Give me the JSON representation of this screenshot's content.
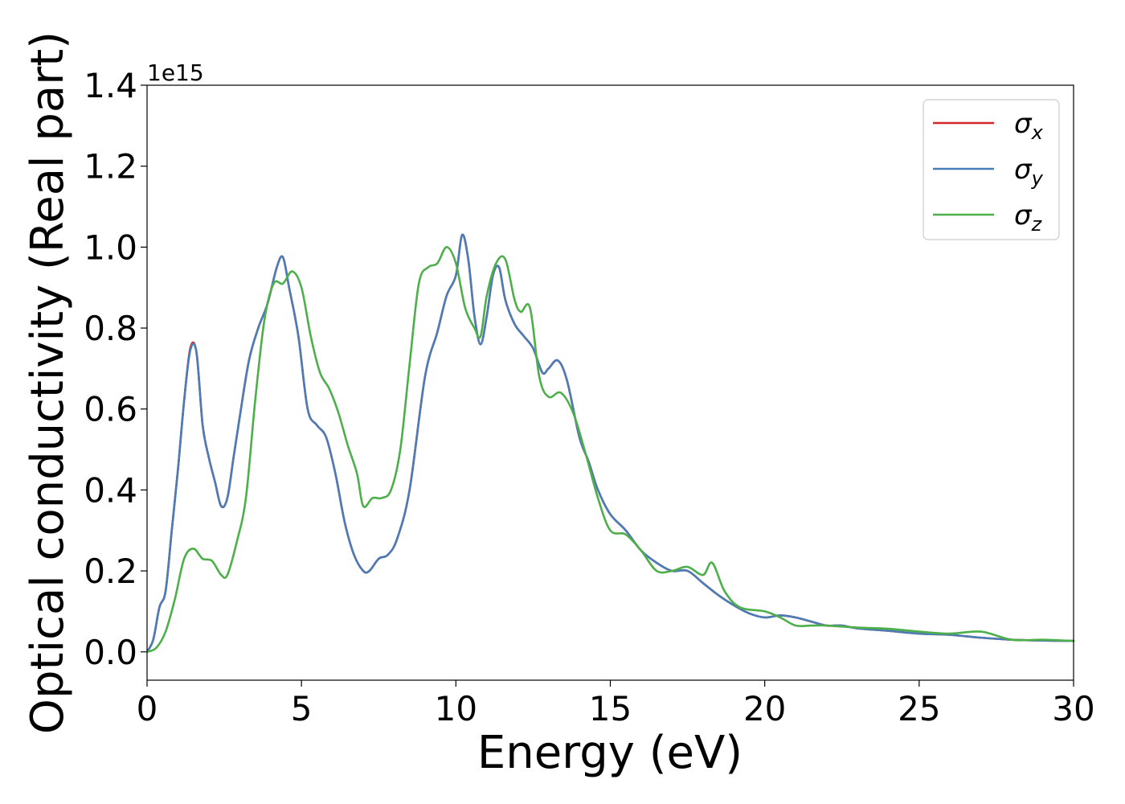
{
  "chart_data": {
    "type": "line",
    "xlabel": "Energy (eV)",
    "ylabel": "Optical conductivity (Real part)",
    "y_offset_text": "1e15",
    "xlim": [
      0,
      30
    ],
    "ylim": [
      -0.07,
      1.4
    ],
    "x_ticks": [
      0,
      5,
      10,
      15,
      20,
      25,
      30
    ],
    "x_tick_labels": [
      "0",
      "5",
      "10",
      "15",
      "20",
      "25",
      "30"
    ],
    "y_ticks": [
      0.0,
      0.2,
      0.4,
      0.6,
      0.8,
      1.0,
      1.2,
      1.4
    ],
    "y_tick_labels": [
      "0.0",
      "0.2",
      "0.4",
      "0.6",
      "0.8",
      "1.0",
      "1.2",
      "1.4"
    ],
    "grid": false,
    "legend": {
      "position": "top-right",
      "entries": [
        "σx",
        "σy",
        "σz"
      ]
    },
    "series": [
      {
        "name": "σx",
        "color": "#d62728",
        "x": [
          0,
          0.2,
          0.4,
          0.6,
          0.8,
          1.0,
          1.2,
          1.4,
          1.6,
          1.8,
          2.0,
          2.2,
          2.4,
          2.6,
          2.8,
          3.0,
          3.3,
          3.6,
          3.9,
          4.2,
          4.4,
          4.6,
          4.9,
          5.2,
          5.5,
          5.8,
          6.1,
          6.4,
          6.7,
          7.0,
          7.2,
          7.5,
          7.8,
          8.1,
          8.5,
          9.0,
          9.4,
          9.7,
          10.0,
          10.2,
          10.4,
          10.6,
          10.8,
          11.0,
          11.2,
          11.4,
          11.6,
          11.9,
          12.2,
          12.5,
          12.8,
          13.0,
          13.3,
          13.6,
          14.0,
          14.3,
          14.6,
          15.0,
          15.5,
          16.0,
          16.5,
          17.0,
          17.5,
          18.0,
          18.5,
          19.0,
          19.5,
          20.0,
          20.5,
          21.0,
          21.5,
          22.0,
          22.5,
          23.0,
          24.0,
          25.0,
          26.0,
          27.0,
          28.0,
          29.0,
          30.0
        ],
        "y": [
          0.0,
          0.03,
          0.11,
          0.15,
          0.3,
          0.45,
          0.62,
          0.75,
          0.74,
          0.56,
          0.48,
          0.42,
          0.36,
          0.38,
          0.48,
          0.58,
          0.72,
          0.8,
          0.86,
          0.95,
          0.975,
          0.9,
          0.78,
          0.6,
          0.56,
          0.53,
          0.44,
          0.32,
          0.24,
          0.2,
          0.2,
          0.23,
          0.24,
          0.28,
          0.4,
          0.68,
          0.79,
          0.88,
          0.93,
          1.03,
          0.97,
          0.83,
          0.76,
          0.83,
          0.93,
          0.95,
          0.87,
          0.81,
          0.78,
          0.75,
          0.69,
          0.7,
          0.72,
          0.67,
          0.53,
          0.47,
          0.4,
          0.34,
          0.3,
          0.25,
          0.22,
          0.2,
          0.2,
          0.17,
          0.14,
          0.115,
          0.095,
          0.085,
          0.09,
          0.085,
          0.075,
          0.065,
          0.065,
          0.058,
          0.052,
          0.045,
          0.042,
          0.035,
          0.03,
          0.028,
          0.027
        ]
      },
      {
        "name": "σy",
        "color": "#4a7cb8",
        "x": [
          0,
          0.2,
          0.4,
          0.6,
          0.8,
          1.0,
          1.2,
          1.4,
          1.6,
          1.8,
          2.0,
          2.2,
          2.4,
          2.6,
          2.8,
          3.0,
          3.3,
          3.6,
          3.9,
          4.2,
          4.4,
          4.6,
          4.9,
          5.2,
          5.5,
          5.8,
          6.1,
          6.4,
          6.7,
          7.0,
          7.2,
          7.5,
          7.8,
          8.1,
          8.5,
          9.0,
          9.4,
          9.7,
          10.0,
          10.2,
          10.4,
          10.6,
          10.8,
          11.0,
          11.2,
          11.4,
          11.6,
          11.9,
          12.2,
          12.5,
          12.8,
          13.0,
          13.3,
          13.6,
          14.0,
          14.3,
          14.6,
          15.0,
          15.5,
          16.0,
          16.5,
          17.0,
          17.5,
          18.0,
          18.5,
          19.0,
          19.5,
          20.0,
          20.5,
          21.0,
          21.5,
          22.0,
          22.5,
          23.0,
          24.0,
          25.0,
          26.0,
          27.0,
          28.0,
          29.0,
          30.0
        ],
        "y": [
          0.0,
          0.03,
          0.11,
          0.15,
          0.3,
          0.45,
          0.62,
          0.745,
          0.74,
          0.56,
          0.48,
          0.42,
          0.36,
          0.38,
          0.48,
          0.58,
          0.72,
          0.8,
          0.86,
          0.95,
          0.975,
          0.9,
          0.78,
          0.6,
          0.56,
          0.53,
          0.44,
          0.32,
          0.24,
          0.2,
          0.2,
          0.23,
          0.24,
          0.28,
          0.4,
          0.68,
          0.79,
          0.88,
          0.93,
          1.03,
          0.97,
          0.83,
          0.76,
          0.83,
          0.93,
          0.95,
          0.87,
          0.81,
          0.78,
          0.75,
          0.69,
          0.7,
          0.72,
          0.67,
          0.53,
          0.47,
          0.4,
          0.34,
          0.3,
          0.25,
          0.22,
          0.2,
          0.2,
          0.17,
          0.14,
          0.115,
          0.095,
          0.085,
          0.09,
          0.085,
          0.075,
          0.065,
          0.065,
          0.058,
          0.052,
          0.045,
          0.042,
          0.035,
          0.03,
          0.028,
          0.027
        ]
      },
      {
        "name": "σz",
        "color": "#4daf4a",
        "x": [
          0,
          0.3,
          0.6,
          0.9,
          1.2,
          1.5,
          1.8,
          2.1,
          2.4,
          2.6,
          2.9,
          3.2,
          3.5,
          3.8,
          4.1,
          4.4,
          4.7,
          5.0,
          5.3,
          5.6,
          5.9,
          6.2,
          6.5,
          6.8,
          7.0,
          7.3,
          7.6,
          7.9,
          8.2,
          8.5,
          8.8,
          9.1,
          9.4,
          9.7,
          10.0,
          10.3,
          10.6,
          10.8,
          11.0,
          11.3,
          11.6,
          11.9,
          12.1,
          12.4,
          12.7,
          13.0,
          13.4,
          13.8,
          14.2,
          14.6,
          15.0,
          15.5,
          16.0,
          16.5,
          17.0,
          17.5,
          18.0,
          18.3,
          18.7,
          19.2,
          20.0,
          20.5,
          21.0,
          21.5,
          22.0,
          23.0,
          24.0,
          25.0,
          26.0,
          27.0,
          28.0,
          29.0,
          30.0
        ],
        "y": [
          0.0,
          0.01,
          0.05,
          0.13,
          0.23,
          0.255,
          0.23,
          0.225,
          0.19,
          0.19,
          0.27,
          0.38,
          0.62,
          0.82,
          0.91,
          0.91,
          0.94,
          0.9,
          0.78,
          0.69,
          0.65,
          0.59,
          0.51,
          0.44,
          0.36,
          0.38,
          0.38,
          0.4,
          0.5,
          0.71,
          0.91,
          0.95,
          0.96,
          1.0,
          0.96,
          0.85,
          0.8,
          0.78,
          0.88,
          0.96,
          0.97,
          0.87,
          0.84,
          0.85,
          0.68,
          0.63,
          0.64,
          0.59,
          0.49,
          0.38,
          0.3,
          0.29,
          0.25,
          0.2,
          0.2,
          0.21,
          0.19,
          0.22,
          0.15,
          0.11,
          0.1,
          0.085,
          0.065,
          0.065,
          0.065,
          0.06,
          0.057,
          0.05,
          0.045,
          0.05,
          0.03,
          0.03,
          0.027
        ]
      }
    ]
  }
}
